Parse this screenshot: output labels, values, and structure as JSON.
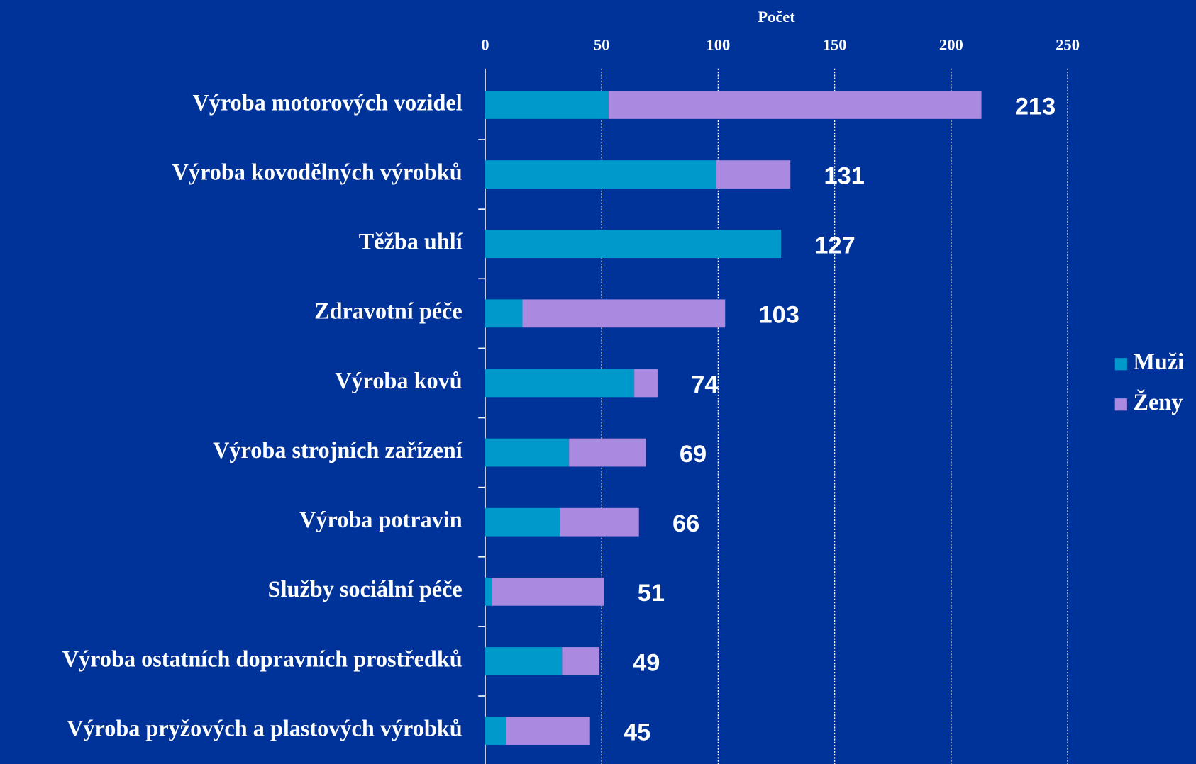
{
  "chart_data": {
    "type": "stacked_bar_horizontal",
    "x_label": "Počet",
    "categories": [
      "Výroba motorových vozidel",
      "Výroba kovodělných výrobků",
      "Těžba uhlí",
      "Zdravotní péče",
      "Výroba kovů",
      "Výroba strojních zařízení",
      "Výroba potravin",
      "Služby sociální péče",
      "Výroba ostatních dopravních prostředků",
      "Výroba pryžových a plastových výrobků"
    ],
    "series": [
      {
        "name": "Muži",
        "color": "#0099cc",
        "values": [
          53,
          99,
          127,
          16,
          64,
          36,
          32,
          3,
          33,
          9
        ]
      },
      {
        "name": "Ženy",
        "color": "#a98ae0",
        "values": [
          160,
          32,
          0,
          87,
          10,
          33,
          34,
          48,
          16,
          36
        ]
      }
    ],
    "totals": [
      213,
      131,
      127,
      103,
      74,
      69,
      66,
      51,
      49,
      45
    ],
    "xlim": [
      0,
      250
    ],
    "xticks": [
      0,
      50,
      100,
      150,
      200,
      250
    ],
    "grid": true,
    "legend": "right"
  }
}
